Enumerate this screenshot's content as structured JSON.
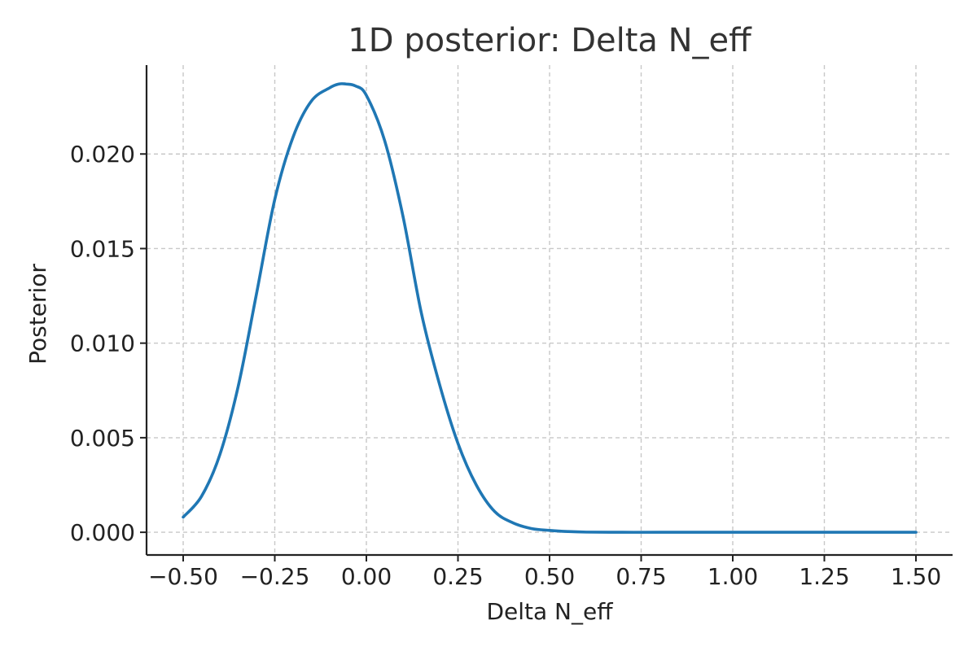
{
  "chart_data": {
    "type": "line",
    "title": "1D posterior: Delta N_eff",
    "xlabel": "Delta N_eff",
    "ylabel": "Posterior",
    "xlim": [
      -0.6,
      1.6
    ],
    "ylim": [
      -0.0012,
      0.0247
    ],
    "grid": true,
    "x_ticks": [
      {
        "value": -0.5,
        "label": "−0.50"
      },
      {
        "value": -0.25,
        "label": "−0.25"
      },
      {
        "value": 0.0,
        "label": "0.00"
      },
      {
        "value": 0.25,
        "label": "0.25"
      },
      {
        "value": 0.5,
        "label": "0.50"
      },
      {
        "value": 0.75,
        "label": "0.75"
      },
      {
        "value": 1.0,
        "label": "1.00"
      },
      {
        "value": 1.25,
        "label": "1.25"
      },
      {
        "value": 1.5,
        "label": "1.50"
      }
    ],
    "y_ticks": [
      {
        "value": 0.0,
        "label": "0.000"
      },
      {
        "value": 0.005,
        "label": "0.005"
      },
      {
        "value": 0.01,
        "label": "0.010"
      },
      {
        "value": 0.015,
        "label": "0.015"
      },
      {
        "value": 0.02,
        "label": "0.020"
      }
    ],
    "series": [
      {
        "color": "#1f77b4",
        "x": [
          -0.5,
          -0.45,
          -0.4,
          -0.35,
          -0.3,
          -0.25,
          -0.2,
          -0.15,
          -0.1,
          -0.075,
          -0.056,
          -0.03,
          0.0,
          0.05,
          0.1,
          0.15,
          0.2,
          0.25,
          0.3,
          0.35,
          0.4,
          0.45,
          0.5,
          0.55,
          0.6,
          0.7,
          0.8,
          1.0,
          1.25,
          1.5
        ],
        "values": [
          0.0008,
          0.0019,
          0.0041,
          0.0077,
          0.0126,
          0.0176,
          0.0209,
          0.0228,
          0.0235,
          0.0237,
          0.0237,
          0.0236,
          0.0231,
          0.0207,
          0.0167,
          0.0116,
          0.0078,
          0.0047,
          0.0025,
          0.0011,
          0.0005,
          0.0002,
          0.0001,
          4e-05,
          1e-05,
          0.0,
          0.0,
          0.0,
          0.0,
          0.0
        ]
      }
    ]
  }
}
